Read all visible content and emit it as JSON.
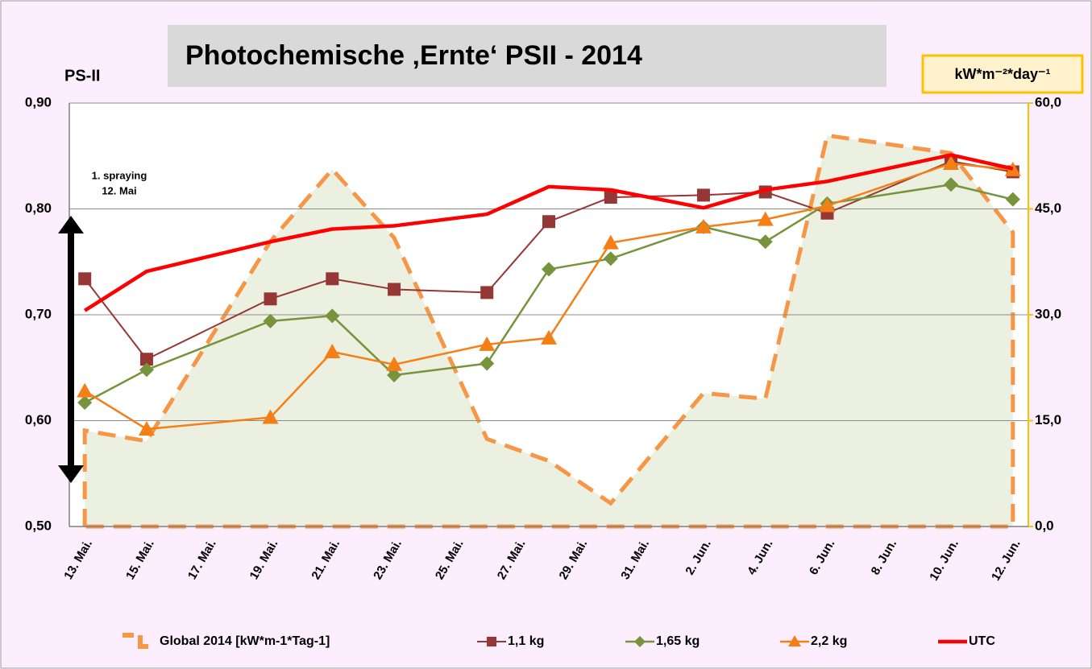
{
  "chart_data": {
    "type": "line",
    "title": "Photochemische ‚Ernte‘ PSII - 2014",
    "y_label": "PS-II",
    "y2_label": "kW*m⁻²*day⁻¹",
    "annotation": [
      "1. spraying",
      "12. Mai"
    ],
    "categories": [
      "13. Mai.",
      null,
      "15. Mai.",
      null,
      "17. Mai.",
      null,
      "19. Mai.",
      null,
      "21. Mai.",
      null,
      "23. Mai.",
      null,
      "25. Mai.",
      null,
      "27. Mai.",
      null,
      "29. Mai.",
      null,
      "31. Mai.",
      null,
      "2. Jun.",
      null,
      "4. Jun.",
      null,
      "6. Jun.",
      null,
      "8. Jun.",
      null,
      "10. Jun.",
      null,
      "12. Jun."
    ],
    "ylim": [
      0.5,
      0.9
    ],
    "yticks": [
      {
        "value": 0.5,
        "label": "0,50"
      },
      {
        "value": 0.6,
        "label": "0,60"
      },
      {
        "value": 0.7,
        "label": "0,70"
      },
      {
        "value": 0.8,
        "label": "0,80"
      },
      {
        "value": 0.9,
        "label": "0,90"
      }
    ],
    "y2lim": [
      0,
      60
    ],
    "y2ticks": [
      {
        "value": 0,
        "label": "0,0"
      },
      {
        "value": 15,
        "label": "15,0"
      },
      {
        "value": 30,
        "label": "30,0"
      },
      {
        "value": 45,
        "label": "45,0"
      },
      {
        "value": 60,
        "label": "60,0"
      }
    ],
    "grid": true,
    "connect_gaps": true,
    "legend": "bottom",
    "series": [
      {
        "name": "Global 2014  [kW*m-1*Tag-1]",
        "type": "area",
        "axis": "y2",
        "color": "#f79646",
        "fill": "#ebf0e0",
        "dashed": true,
        "values": [
          13.6,
          null,
          12.1,
          null,
          null,
          null,
          40.4,
          null,
          50.6,
          null,
          40.9,
          null,
          null,
          12.4,
          null,
          9.3,
          null,
          3.3,
          null,
          null,
          18.9,
          null,
          18.1,
          null,
          55.4,
          null,
          null,
          null,
          52.9,
          null,
          41.7
        ]
      },
      {
        "name": "1,1 kg",
        "color": "#953735",
        "marker": "square",
        "width": 2,
        "values": [
          0.734,
          null,
          0.658,
          null,
          null,
          null,
          0.715,
          null,
          0.734,
          null,
          0.724,
          null,
          null,
          0.721,
          null,
          0.788,
          null,
          0.811,
          null,
          null,
          0.813,
          null,
          0.816,
          null,
          0.796,
          null,
          null,
          null,
          0.845,
          null,
          0.835
        ]
      },
      {
        "name": "1,65 kg",
        "color": "#77933c",
        "marker": "diamond",
        "width": 2.5,
        "values": [
          0.617,
          null,
          0.648,
          null,
          null,
          null,
          0.694,
          null,
          0.699,
          null,
          0.643,
          null,
          null,
          0.654,
          null,
          0.743,
          null,
          0.753,
          null,
          null,
          0.783,
          null,
          0.769,
          null,
          0.805,
          null,
          null,
          null,
          0.823,
          null,
          0.809
        ]
      },
      {
        "name": "2,2 kg",
        "color": "#f57f17",
        "marker": "triangle",
        "width": 2.5,
        "values": [
          0.628,
          null,
          0.592,
          null,
          null,
          null,
          0.603,
          null,
          0.665,
          null,
          0.653,
          null,
          null,
          0.672,
          null,
          0.678,
          null,
          0.768,
          null,
          null,
          0.783,
          null,
          0.79,
          null,
          0.803,
          null,
          null,
          null,
          0.843,
          null,
          0.837
        ]
      },
      {
        "name": "UTC",
        "color": "#ff0000",
        "width": 4.5,
        "values": [
          0.704,
          null,
          0.741,
          null,
          null,
          null,
          0.769,
          null,
          0.781,
          null,
          0.784,
          null,
          null,
          0.795,
          null,
          0.821,
          null,
          0.818,
          null,
          null,
          0.801,
          null,
          0.818,
          null,
          0.826,
          null,
          null,
          null,
          0.851,
          null,
          0.838
        ]
      }
    ]
  }
}
